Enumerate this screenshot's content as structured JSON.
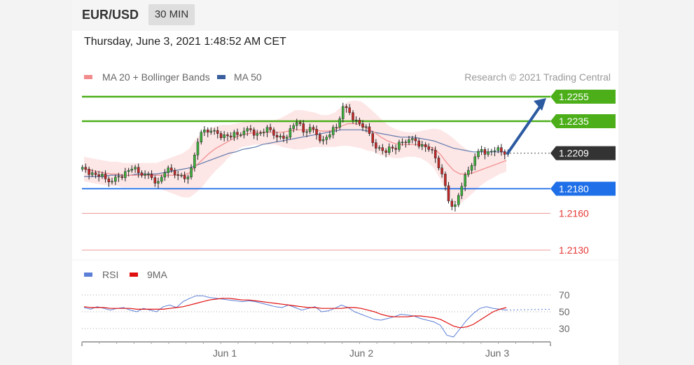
{
  "header": {
    "pair": "EUR/USD",
    "timeframe": "30 MIN"
  },
  "datetime": "Thursday, June 3, 2021 1:48:52 AM CET",
  "legend": {
    "items": [
      {
        "name": "MA 20 + Bollinger Bands",
        "color": "#f28b8b"
      },
      {
        "name": "MA 50",
        "color": "#3a5f9e"
      }
    ],
    "copyright": "Research © 2021 Trading Central"
  },
  "rsi_legend": {
    "items": [
      {
        "name": "RSI",
        "color": "#5b7fd6"
      },
      {
        "name": "9MA",
        "color": "#e01010"
      }
    ]
  },
  "chart_data": [
    {
      "type": "candlestick",
      "title": "EUR/USD",
      "ylim": [
        1.2115,
        1.228
      ],
      "x_ticks": [
        "Jun 1",
        "Jun 2",
        "Jun 3"
      ],
      "levels": [
        {
          "value": 1.2255,
          "label": "1.2255",
          "kind": "resistance",
          "color": "#4caf1a"
        },
        {
          "value": 1.2235,
          "label": "1.2235",
          "kind": "resistance",
          "color": "#4caf1a"
        },
        {
          "value": 1.2209,
          "label": "1.2209",
          "kind": "last",
          "color": "#333333"
        },
        {
          "value": 1.218,
          "label": "1.2180",
          "kind": "support",
          "color": "#1f6fe8"
        },
        {
          "value": 1.216,
          "label": "1.2160",
          "kind": "support",
          "color": "#e53935"
        },
        {
          "value": 1.213,
          "label": "1.2130",
          "kind": "support",
          "color": "#e53935"
        }
      ],
      "price_path": [
        1.2196,
        1.2193,
        1.219,
        1.2188,
        1.2186,
        1.219,
        1.2194,
        1.2196,
        1.2193,
        1.2192,
        1.2189,
        1.2186,
        1.2193,
        1.2195,
        1.2191,
        1.2188,
        1.2197,
        1.2218,
        1.2228,
        1.2227,
        1.2225,
        1.2224,
        1.2222,
        1.2224,
        1.2227,
        1.2228,
        1.2225,
        1.2226,
        1.2228,
        1.2222,
        1.2221,
        1.2229,
        1.2234,
        1.2226,
        1.223,
        1.2224,
        1.222,
        1.2224,
        1.223,
        1.2247,
        1.2242,
        1.2236,
        1.223,
        1.2225,
        1.2213,
        1.2211,
        1.2214,
        1.2212,
        1.2218,
        1.222,
        1.2219,
        1.2216,
        1.2212,
        1.2205,
        1.2192,
        1.217,
        1.2167,
        1.2182,
        1.2195,
        1.2206,
        1.2212,
        1.221,
        1.2211,
        1.221,
        1.2209
      ],
      "ma20": [
        1.2196,
        1.2195,
        1.2194,
        1.2193,
        1.2192,
        1.2192,
        1.2191,
        1.2191,
        1.2191,
        1.2191,
        1.2191,
        1.2191,
        1.2191,
        1.2191,
        1.2191,
        1.2191,
        1.2193,
        1.2199,
        1.2204,
        1.2209,
        1.2213,
        1.2216,
        1.2219,
        1.2222,
        1.2224,
        1.2225,
        1.2226,
        1.2226,
        1.2226,
        1.2226,
        1.2226,
        1.2227,
        1.2228,
        1.2228,
        1.2228,
        1.2228,
        1.2227,
        1.2227,
        1.2228,
        1.2231,
        1.2233,
        1.2233,
        1.2232,
        1.2229,
        1.2226,
        1.2222,
        1.2219,
        1.2217,
        1.2216,
        1.2216,
        1.2216,
        1.2216,
        1.2215,
        1.2213,
        1.2208,
        1.2201,
        1.2195,
        1.2192,
        1.2192,
        1.2193,
        1.2195,
        1.2197,
        1.2199,
        1.2201,
        1.2203
      ],
      "ma50": [
        1.219,
        1.219,
        1.219,
        1.219,
        1.2191,
        1.2191,
        1.2191,
        1.2191,
        1.2192,
        1.2192,
        1.2192,
        1.2192,
        1.2193,
        1.2194,
        1.2195,
        1.2196,
        1.2197,
        1.2199,
        1.2201,
        1.2203,
        1.2205,
        1.2207,
        1.2209,
        1.221,
        1.2212,
        1.2213,
        1.2214,
        1.2216,
        1.2217,
        1.2218,
        1.2219,
        1.222,
        1.2221,
        1.2222,
        1.2223,
        1.2224,
        1.2225,
        1.2226,
        1.2227,
        1.2228,
        1.2228,
        1.2228,
        1.2228,
        1.2227,
        1.2226,
        1.2225,
        1.2224,
        1.2223,
        1.2222,
        1.2222,
        1.2222,
        1.2221,
        1.222,
        1.2219,
        1.2217,
        1.2215,
        1.2213,
        1.2212,
        1.2211,
        1.221,
        1.221,
        1.221,
        1.221,
        1.221,
        1.221
      ],
      "band_width": [
        0.001,
        0.001,
        0.001,
        0.001,
        0.001,
        0.001,
        0.001,
        0.001,
        0.001,
        0.001,
        0.001,
        0.001,
        0.0012,
        0.0014,
        0.0016,
        0.0018,
        0.002,
        0.0022,
        0.0022,
        0.002,
        0.0018,
        0.0016,
        0.0013,
        0.0011,
        0.001,
        0.001,
        0.001,
        0.001,
        0.001,
        0.001,
        0.0012,
        0.0014,
        0.0016,
        0.0016,
        0.0015,
        0.0014,
        0.0013,
        0.0013,
        0.0014,
        0.0016,
        0.0018,
        0.0019,
        0.0019,
        0.0018,
        0.0016,
        0.0015,
        0.0013,
        0.0012,
        0.0011,
        0.001,
        0.001,
        0.0011,
        0.0013,
        0.0016,
        0.002,
        0.0024,
        0.0026,
        0.0024,
        0.002,
        0.0016,
        0.0013,
        0.0011,
        0.001,
        0.0009,
        0.0009
      ],
      "forecast_arrow": {
        "from": 1.2209,
        "to": 1.2255
      }
    },
    {
      "type": "line",
      "title": "RSI",
      "ylim": [
        15,
        85
      ],
      "y_ticks": [
        70,
        50,
        30
      ],
      "series": [
        {
          "name": "RSI",
          "color": "#5b7fd6",
          "values": [
            55,
            53,
            56,
            54,
            52,
            54,
            55,
            52,
            50,
            54,
            52,
            50,
            56,
            58,
            55,
            62,
            66,
            69,
            69,
            67,
            66,
            65,
            64,
            63,
            62,
            63,
            62,
            60,
            58,
            56,
            55,
            58,
            55,
            52,
            54,
            56,
            50,
            51,
            54,
            58,
            55,
            50,
            47,
            44,
            41,
            40,
            42,
            44,
            47,
            46,
            45,
            42,
            40,
            38,
            34,
            22,
            20,
            30,
            40,
            48,
            54,
            56,
            54,
            53,
            52
          ]
        },
        {
          "name": "9MA",
          "color": "#e01010",
          "values": [
            56,
            55,
            55,
            55,
            54,
            54,
            54,
            54,
            53,
            53,
            53,
            53,
            53,
            54,
            55,
            56,
            58,
            60,
            62,
            64,
            65,
            66,
            66,
            65,
            64,
            64,
            63,
            62,
            61,
            60,
            59,
            58,
            57,
            56,
            55,
            55,
            54,
            54,
            54,
            54,
            55,
            55,
            54,
            52,
            50,
            47,
            45,
            44,
            44,
            44,
            45,
            45,
            44,
            43,
            41,
            37,
            33,
            31,
            32,
            35,
            40,
            45,
            50,
            53,
            55
          ]
        }
      ]
    }
  ]
}
